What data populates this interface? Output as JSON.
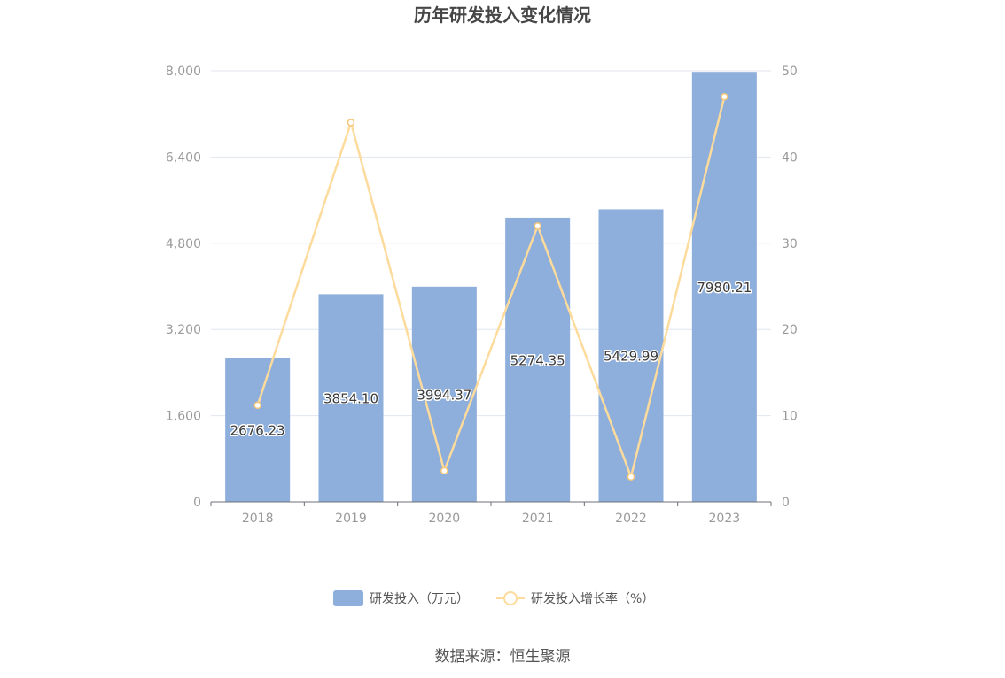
{
  "chart_data": {
    "type": "bar",
    "title": "历年研发投入变化情况",
    "categories": [
      "2018",
      "2019",
      "2020",
      "2021",
      "2022",
      "2023"
    ],
    "series": [
      {
        "name": "研发投入（万元）",
        "type": "bar",
        "axis": "left",
        "color": "#8eaedb",
        "values": [
          2676.23,
          3854.1,
          3994.37,
          5274.35,
          5429.99,
          7980.21
        ],
        "labels": [
          "2676.23",
          "3854.10",
          "3994.37",
          "5274.35",
          "5429.99",
          "7980.21"
        ]
      },
      {
        "name": "研发投入增长率（%）",
        "type": "line",
        "axis": "right",
        "color": "#fddb9c",
        "values": [
          11.2,
          44.0,
          3.6,
          32.0,
          2.9,
          47.0
        ]
      }
    ],
    "left_axis": {
      "min": 0,
      "max": 8000,
      "ticks": [
        0,
        1600,
        3200,
        4800,
        6400,
        8000
      ],
      "tick_labels": [
        "0",
        "1,600",
        "3,200",
        "4,800",
        "6,400",
        "8,000"
      ]
    },
    "right_axis": {
      "min": 0,
      "max": 50,
      "ticks": [
        0,
        10,
        20,
        30,
        40,
        50
      ],
      "tick_labels": [
        "0",
        "10",
        "20",
        "30",
        "40",
        "50"
      ]
    },
    "grid": true,
    "legend_position": "bottom"
  },
  "source": "数据来源：恒生聚源"
}
